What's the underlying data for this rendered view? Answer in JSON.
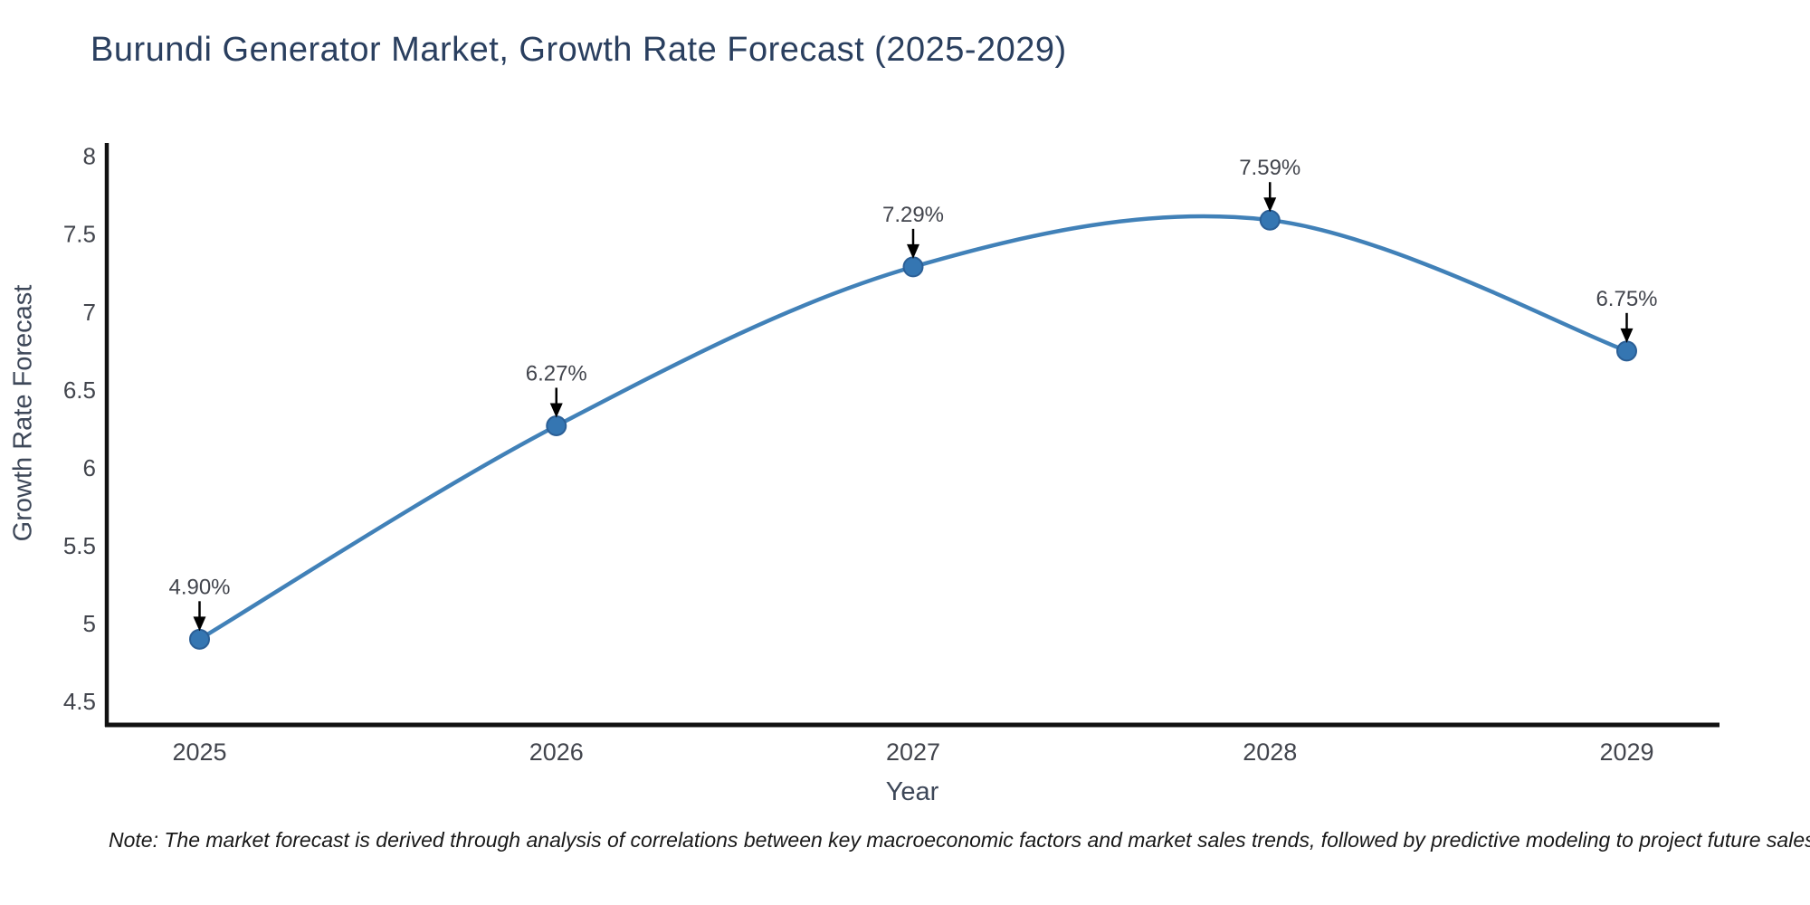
{
  "chart": {
    "title": "Burundi Generator Market, Growth Rate Forecast (2025-2029)",
    "xlabel": "Year",
    "ylabel": "Growth Rate Forecast"
  },
  "note": {
    "text": "Note: The market forecast is derived through analysis of correlations between key macroeconomic factors and market sales trends, followed by predictive modeling to project future sales"
  },
  "chart_data": {
    "type": "line",
    "title": "Burundi Generator Market, Growth Rate Forecast (2025-2029)",
    "xlabel": "Year",
    "ylabel": "Growth Rate Forecast",
    "x": [
      2025,
      2026,
      2027,
      2028,
      2029
    ],
    "y": [
      4.9,
      6.27,
      7.29,
      7.59,
      6.75
    ],
    "point_labels": [
      "4.90%",
      "6.27%",
      "7.29%",
      "7.59%",
      "6.75%"
    ],
    "xticks": [
      2025,
      2026,
      2027,
      2028,
      2029
    ],
    "yticks": [
      4.5,
      5,
      5.5,
      6,
      6.5,
      7,
      7.5,
      8
    ],
    "xlim": [
      2024.74,
      2029.26
    ],
    "ylim": [
      4.35,
      8.085
    ],
    "grid": false,
    "legend": false,
    "smooth": true,
    "annotation_style": "value-label-with-down-arrow",
    "colors": {
      "line": "#4181b8",
      "marker_fill": "#3576b2",
      "marker_edge": "#2b5f96",
      "axis_line": "#111111",
      "tick_label": "#42454d",
      "axis_title": "#3d4758",
      "chart_title": "#2a3f5f",
      "annotation_text": "#42454d",
      "annotation_arrow": "#000000",
      "background": "#ffffff",
      "note_text": "#191919"
    }
  }
}
